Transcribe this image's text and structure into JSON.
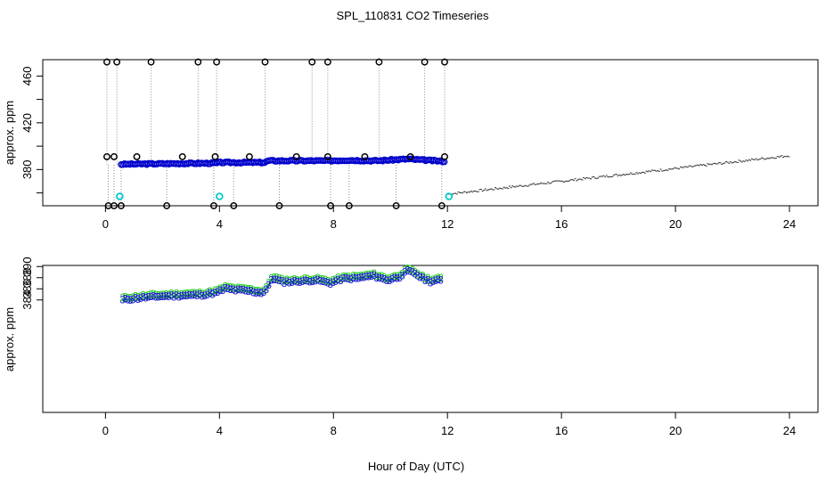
{
  "figure": {
    "title": "SPL_110831  CO2 Timeseries",
    "xlabel": "Hour of Day (UTC)"
  },
  "colors": {
    "axis": "#000000",
    "raw_points": "#000000",
    "calibration": "#00cccc",
    "series_main": "#0000cc",
    "series_3": "#1a1acc",
    "series_2": "#22cc22",
    "gap_line": "#888888"
  },
  "chart_data": [
    {
      "type": "scatter",
      "id": "top",
      "title": "",
      "xlabel": "",
      "ylabel": "approx. ppm",
      "xlim": [
        -2.2,
        25
      ],
      "ylim": [
        349,
        474
      ],
      "x_ticks": [
        0,
        4,
        8,
        12,
        16,
        20,
        24
      ],
      "x_tick_labels": [
        "0",
        "4",
        "8",
        "12",
        "16",
        "20",
        "24"
      ],
      "y_ticks": [
        380,
        420,
        460
      ],
      "y_tick_labels": [
        "380",
        "420",
        "460"
      ],
      "y_minor_ticks": [
        360,
        400,
        440
      ],
      "spike_high_x": [
        0.05,
        0.4,
        1.6,
        3.25,
        3.9,
        5.6,
        7.25,
        7.8,
        9.6,
        11.2,
        11.9
      ],
      "spike_high_y": 472,
      "mid_outliers": [
        {
          "x": 0.05,
          "y": 391
        },
        {
          "x": 0.3,
          "y": 391
        },
        {
          "x": 1.1,
          "y": 391
        },
        {
          "x": 2.7,
          "y": 391
        },
        {
          "x": 3.85,
          "y": 391
        },
        {
          "x": 5.05,
          "y": 391
        },
        {
          "x": 6.7,
          "y": 391
        },
        {
          "x": 7.8,
          "y": 391
        },
        {
          "x": 9.1,
          "y": 391
        },
        {
          "x": 10.7,
          "y": 391
        },
        {
          "x": 11.9,
          "y": 391
        }
      ],
      "low_outliers_x": [
        0.1,
        0.3,
        0.55,
        2.15,
        3.8,
        4.5,
        6.1,
        7.9,
        8.55,
        10.2,
        11.8
      ],
      "low_outliers_y": 349,
      "calibration_points": [
        {
          "x": 0.5,
          "y": 357
        },
        {
          "x": 4.0,
          "y": 357
        },
        {
          "x": 12.05,
          "y": 357
        }
      ],
      "main_series": {
        "x_start": 0.55,
        "x_end": 11.9,
        "keypoints": [
          [
            0.55,
            384.5
          ],
          [
            2.0,
            385
          ],
          [
            3.9,
            385.5
          ],
          [
            4.0,
            386
          ],
          [
            5.6,
            386
          ],
          [
            5.7,
            387.5
          ],
          [
            7.8,
            387.5
          ],
          [
            8.5,
            388
          ],
          [
            9.5,
            387.5
          ],
          [
            10.6,
            389
          ],
          [
            11.9,
            387
          ]
        ]
      },
      "tail_series": {
        "x_start": 12.0,
        "x_end": 24.0,
        "keypoints": [
          [
            12.0,
            359
          ],
          [
            24.0,
            392
          ]
        ]
      }
    },
    {
      "type": "scatter",
      "id": "bottom",
      "title": "",
      "xlabel": "Hour of Day (UTC)",
      "ylabel": "approx. ppm",
      "xlim": [
        -2.2,
        25
      ],
      "ylim": [
        363.8,
        390.2
      ],
      "x_ticks": [
        0,
        4,
        8,
        12,
        16,
        20,
        24
      ],
      "x_tick_labels": [
        "0",
        "4",
        "8",
        "12",
        "16",
        "20",
        "24"
      ],
      "y_ticks": [
        384,
        386,
        388,
        390
      ],
      "y_tick_labels": [
        "384",
        "386",
        "388",
        "390"
      ],
      "marker_labels": [
        "3",
        "2"
      ],
      "series_3_keypoints": [
        [
          0.6,
          384.0
        ],
        [
          1.0,
          384.2
        ],
        [
          1.4,
          384.4
        ],
        [
          1.9,
          384.6
        ],
        [
          2.4,
          384.7
        ],
        [
          3.0,
          384.8
        ],
        [
          3.5,
          384.9
        ],
        [
          3.9,
          385.3
        ],
        [
          4.2,
          386.0
        ],
        [
          4.6,
          385.7
        ],
        [
          5.0,
          385.6
        ],
        [
          5.5,
          385.2
        ],
        [
          5.7,
          386.2
        ],
        [
          5.85,
          387.9
        ],
        [
          6.2,
          387.2
        ],
        [
          6.8,
          387.3
        ],
        [
          7.4,
          387.5
        ],
        [
          7.9,
          387.0
        ],
        [
          8.3,
          387.7
        ],
        [
          8.9,
          387.9
        ],
        [
          9.4,
          388.3
        ],
        [
          9.9,
          387.5
        ],
        [
          10.3,
          388.1
        ],
        [
          10.6,
          389.2
        ],
        [
          10.9,
          388.6
        ],
        [
          11.1,
          387.9
        ],
        [
          11.4,
          387.3
        ],
        [
          11.8,
          387.5
        ]
      ],
      "series_2_offset": 0.35
    }
  ]
}
